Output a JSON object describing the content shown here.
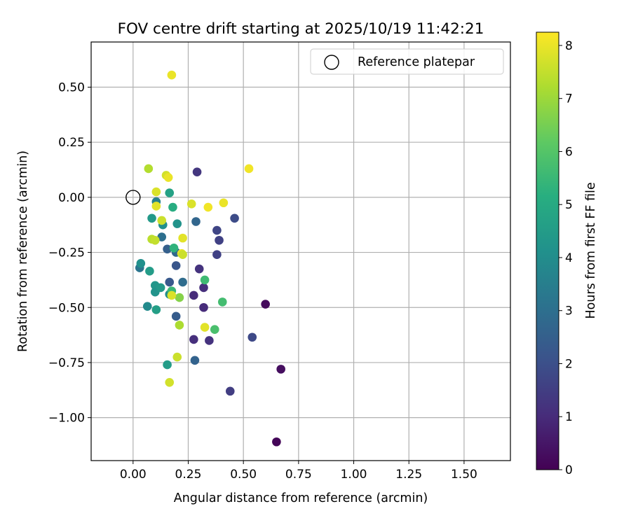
{
  "chart_data": {
    "type": "scatter",
    "title": "FOV centre drift starting at 2025/10/19 11:42:21",
    "xlabel": "Angular distance from reference (arcmin)",
    "ylabel": "Rotation from reference (arcmin)",
    "xlim": [
      -0.19,
      1.71
    ],
    "ylim": [
      -1.195,
      0.705
    ],
    "xticks": [
      0.0,
      0.25,
      0.5,
      0.75,
      1.0,
      1.25,
      1.5
    ],
    "xtick_labels": [
      "0.00",
      "0.25",
      "0.50",
      "0.75",
      "1.00",
      "1.25",
      "1.50"
    ],
    "yticks": [
      0.5,
      0.25,
      0.0,
      -0.25,
      -0.5,
      -0.75,
      -1.0
    ],
    "ytick_labels": [
      "0.50",
      "0.25",
      "0.00",
      "−0.25",
      "−0.50",
      "−0.75",
      "−1.00"
    ],
    "grid": true,
    "legend": {
      "position": "top-right",
      "label": "Reference platepar",
      "marker": "open-circle"
    },
    "reference_point": {
      "x": 0.0,
      "y": 0.0
    },
    "colorbar": {
      "label": "Hours from first FF file",
      "range": [
        0,
        8.25
      ],
      "colormap": "viridis",
      "ticks": [
        0,
        1,
        2,
        3,
        4,
        5,
        6,
        7,
        8
      ],
      "tick_labels": [
        "0",
        "1",
        "2",
        "3",
        "4",
        "5",
        "6",
        "7",
        "8"
      ]
    },
    "points": [
      {
        "x": 0.65,
        "y": -1.11,
        "c": 0.1
      },
      {
        "x": 0.67,
        "y": -0.78,
        "c": 0.3
      },
      {
        "x": 0.6,
        "y": -0.485,
        "c": 0.2
      },
      {
        "x": 0.44,
        "y": -0.88,
        "c": 1.5
      },
      {
        "x": 0.54,
        "y": -0.635,
        "c": 1.8
      },
      {
        "x": 0.46,
        "y": -0.095,
        "c": 1.9
      },
      {
        "x": 0.38,
        "y": -0.15,
        "c": 1.7
      },
      {
        "x": 0.39,
        "y": -0.195,
        "c": 1.6
      },
      {
        "x": 0.38,
        "y": -0.26,
        "c": 1.6
      },
      {
        "x": 0.29,
        "y": 0.115,
        "c": 1.3
      },
      {
        "x": 0.3,
        "y": -0.325,
        "c": 1.2
      },
      {
        "x": 0.32,
        "y": -0.41,
        "c": 1.1
      },
      {
        "x": 0.275,
        "y": -0.445,
        "c": 1.0
      },
      {
        "x": 0.32,
        "y": -0.5,
        "c": 1.0
      },
      {
        "x": 0.275,
        "y": -0.645,
        "c": 1.1
      },
      {
        "x": 0.345,
        "y": -0.65,
        "c": 1.2
      },
      {
        "x": 0.28,
        "y": -0.74,
        "c": 2.6
      },
      {
        "x": 0.285,
        "y": -0.11,
        "c": 2.7
      },
      {
        "x": 0.195,
        "y": -0.31,
        "c": 2.2
      },
      {
        "x": 0.195,
        "y": -0.54,
        "c": 2.4
      },
      {
        "x": 0.165,
        "y": -0.385,
        "c": 2.3
      },
      {
        "x": 0.225,
        "y": -0.385,
        "c": 2.9
      },
      {
        "x": 0.155,
        "y": -0.235,
        "c": 2.5
      },
      {
        "x": 0.195,
        "y": -0.25,
        "c": 2.8
      },
      {
        "x": 0.13,
        "y": -0.18,
        "c": 3.0
      },
      {
        "x": 0.03,
        "y": -0.32,
        "c": 3.2
      },
      {
        "x": 0.035,
        "y": -0.3,
        "c": 4.1
      },
      {
        "x": 0.065,
        "y": -0.495,
        "c": 3.9
      },
      {
        "x": 0.075,
        "y": -0.335,
        "c": 4.5
      },
      {
        "x": 0.1,
        "y": -0.4,
        "c": 4.3
      },
      {
        "x": 0.1,
        "y": -0.43,
        "c": 4.2
      },
      {
        "x": 0.125,
        "y": -0.41,
        "c": 4.4
      },
      {
        "x": 0.105,
        "y": -0.51,
        "c": 4.6
      },
      {
        "x": 0.165,
        "y": -0.44,
        "c": 4.0
      },
      {
        "x": 0.105,
        "y": -0.02,
        "c": 3.6
      },
      {
        "x": 0.085,
        "y": -0.095,
        "c": 4.4
      },
      {
        "x": 0.135,
        "y": -0.125,
        "c": 4.1
      },
      {
        "x": 0.2,
        "y": -0.12,
        "c": 4.2
      },
      {
        "x": 0.165,
        "y": 0.02,
        "c": 4.7
      },
      {
        "x": 0.155,
        "y": -0.76,
        "c": 4.5
      },
      {
        "x": 0.18,
        "y": -0.045,
        "c": 5.1
      },
      {
        "x": 0.185,
        "y": -0.23,
        "c": 5.3
      },
      {
        "x": 0.175,
        "y": -0.425,
        "c": 5.5
      },
      {
        "x": 0.325,
        "y": -0.375,
        "c": 5.6
      },
      {
        "x": 0.405,
        "y": -0.475,
        "c": 5.7
      },
      {
        "x": 0.37,
        "y": -0.6,
        "c": 5.8
      },
      {
        "x": 0.21,
        "y": -0.455,
        "c": 6.7
      },
      {
        "x": 0.21,
        "y": -0.58,
        "c": 7.2
      },
      {
        "x": 0.2,
        "y": -0.725,
        "c": 7.6
      },
      {
        "x": 0.165,
        "y": -0.84,
        "c": 7.7
      },
      {
        "x": 0.175,
        "y": -0.445,
        "c": 7.8
      },
      {
        "x": 0.07,
        "y": 0.13,
        "c": 7.3
      },
      {
        "x": 0.085,
        "y": -0.19,
        "c": 7.4
      },
      {
        "x": 0.1,
        "y": -0.195,
        "c": 7.5
      },
      {
        "x": 0.13,
        "y": -0.105,
        "c": 7.6
      },
      {
        "x": 0.105,
        "y": -0.04,
        "c": 7.9
      },
      {
        "x": 0.105,
        "y": 0.025,
        "c": 7.8
      },
      {
        "x": 0.15,
        "y": 0.1,
        "c": 7.7
      },
      {
        "x": 0.16,
        "y": 0.09,
        "c": 8.0
      },
      {
        "x": 0.225,
        "y": -0.185,
        "c": 7.9
      },
      {
        "x": 0.22,
        "y": -0.255,
        "c": 8.0
      },
      {
        "x": 0.225,
        "y": -0.26,
        "c": 7.6
      },
      {
        "x": 0.265,
        "y": -0.03,
        "c": 7.8
      },
      {
        "x": 0.34,
        "y": -0.045,
        "c": 8.1
      },
      {
        "x": 0.41,
        "y": -0.025,
        "c": 8.0
      },
      {
        "x": 0.325,
        "y": -0.59,
        "c": 7.9
      },
      {
        "x": 0.525,
        "y": 0.13,
        "c": 8.1
      },
      {
        "x": 0.175,
        "y": 0.555,
        "c": 8.0
      }
    ]
  }
}
